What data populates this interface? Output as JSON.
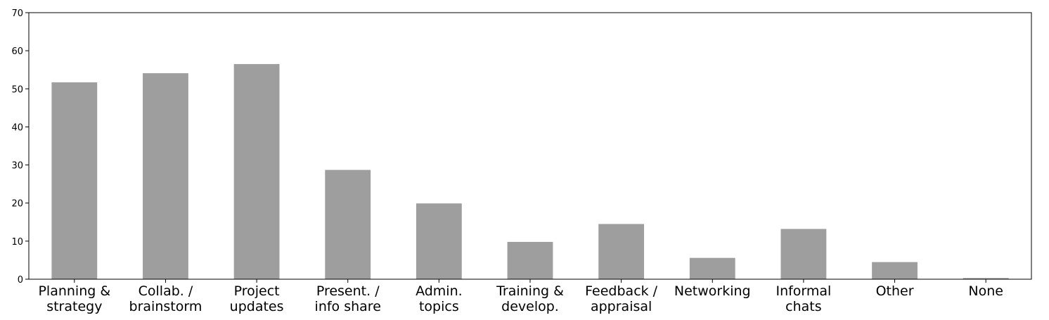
{
  "chart_data": {
    "type": "bar",
    "categories": [
      [
        "Planning &",
        "strategy"
      ],
      [
        "Collab. /",
        "brainstorm"
      ],
      [
        "Project",
        "updates"
      ],
      [
        "Present. /",
        "info share"
      ],
      [
        "Admin.",
        "topics"
      ],
      [
        "Training &",
        "develop."
      ],
      [
        "Feedback /",
        "appraisal"
      ],
      [
        "Networking"
      ],
      [
        "Informal",
        "chats"
      ],
      [
        "Other"
      ],
      [
        "None"
      ]
    ],
    "values": [
      51.7,
      54.1,
      56.5,
      28.7,
      19.9,
      9.8,
      14.5,
      5.6,
      13.2,
      4.5,
      0.3
    ],
    "ylim": [
      0,
      70
    ],
    "yticks": [
      0,
      10,
      20,
      30,
      40,
      50,
      60,
      70
    ],
    "bar_color": "#9e9e9e",
    "grid": false,
    "title": "",
    "xlabel": "",
    "ylabel": ""
  }
}
